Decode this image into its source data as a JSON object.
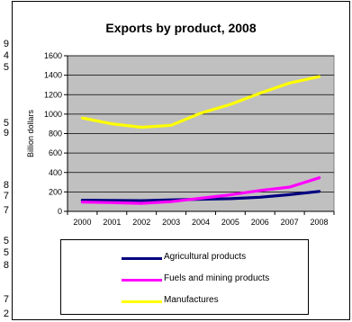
{
  "cut_off_text": [
    "9",
    "4",
    "5",
    "5",
    "9",
    "8",
    "7",
    "7",
    "5",
    "5",
    "8",
    "7",
    "2"
  ],
  "chart_data": {
    "type": "line",
    "title": "Exports by product, 2008",
    "xlabel": "",
    "ylabel": "Billion dollars",
    "x": [
      "2000",
      "2001",
      "2002",
      "2003",
      "2004",
      "2005",
      "2006",
      "2007",
      "2008"
    ],
    "ylim": [
      0,
      1600
    ],
    "yticks": [
      "0",
      "200",
      "400",
      "600",
      "800",
      "1000",
      "1200",
      "1400",
      "1600"
    ],
    "grid": true,
    "legend_position": "bottom",
    "plot_background": "#c0c0c0",
    "series": [
      {
        "name": "Agricultural products",
        "color": "#000080",
        "values": [
          115,
          113,
          110,
          118,
          125,
          130,
          145,
          172,
          205
        ]
      },
      {
        "name": "Fuels and mining products",
        "color": "#ff00ff",
        "values": [
          95,
          90,
          82,
          100,
          135,
          170,
          215,
          250,
          345
        ]
      },
      {
        "name": "Manufactures",
        "color": "#ffff00",
        "values": [
          960,
          900,
          865,
          885,
          1010,
          1100,
          1215,
          1320,
          1385
        ]
      }
    ]
  }
}
